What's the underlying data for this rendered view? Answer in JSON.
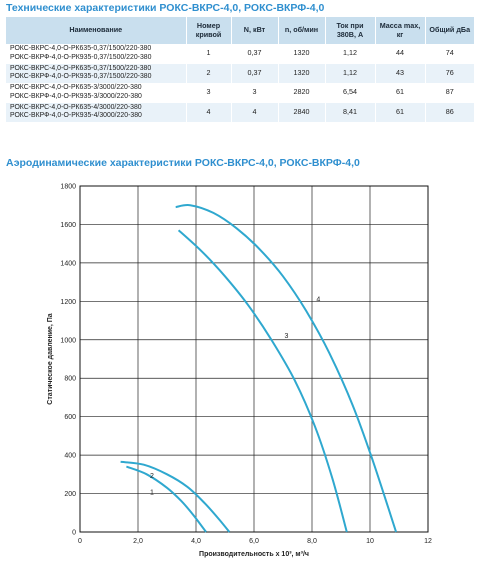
{
  "header": {
    "specs_title": "Технические характеристики РОКС-ВКРС-4,0, РОКС-ВКРФ-4,0",
    "aero_title": "Аэродинамические характеристики РОКС-ВКРС-4,0, РОКС-ВКРФ-4,0"
  },
  "table": {
    "columns": [
      "Наименование",
      "Номер кривой",
      "N, кВт",
      "n, об/мин",
      "Ток при 380В, А",
      "Масса max, кг",
      "Общий дБа"
    ],
    "rows": [
      {
        "names": [
          "РОКС-ВКРС-4,0-О-РК635-0,37/1500/220-380",
          "РОКС-ВКРФ-4,0-О-РК935-0,37/1500/220-380"
        ],
        "curve": "1",
        "power": "0,37",
        "rpm": "1320",
        "current": "1,12",
        "mass": "44",
        "noise": "74"
      },
      {
        "names": [
          "РОКС-ВКРС-4,0-О-РК635-0,37/1500/220-380",
          "РОКС-ВКРФ-4,0-О-РК935-0,37/1500/220-380"
        ],
        "curve": "2",
        "power": "0,37",
        "rpm": "1320",
        "current": "1,12",
        "mass": "43",
        "noise": "76"
      },
      {
        "names": [
          "РОКС-ВКРС-4,0-О-РК635-3/3000/220-380",
          "РОКС-ВКРФ-4,0-О-РК935-3/3000/220-380"
        ],
        "curve": "3",
        "power": "3",
        "rpm": "2820",
        "current": "6,54",
        "mass": "61",
        "noise": "87"
      },
      {
        "names": [
          "РОКС-ВКРС-4,0-О-РК635-4/3000/220-380",
          "РОКС-ВКРФ-4,0-О-РК935-4/3000/220-380"
        ],
        "curve": "4",
        "power": "4",
        "rpm": "2840",
        "current": "8,41",
        "mass": "61",
        "noise": "86"
      }
    ]
  },
  "chart_data": {
    "type": "line",
    "title": "",
    "xlabel": "Производительность х 10³, м³/ч",
    "ylabel": "Статическое давление, Па",
    "xlim": [
      0,
      12
    ],
    "ylim": [
      0,
      1800
    ],
    "xticks": [
      "0",
      "2,0",
      "4,0",
      "6,0",
      "8,0",
      "10",
      "12"
    ],
    "yticks": [
      "0",
      "200",
      "400",
      "600",
      "800",
      "1000",
      "1200",
      "1400",
      "1600",
      "1800"
    ],
    "grid": true,
    "line_color": "#2fa8cf",
    "series": [
      {
        "name": "1",
        "x": [
          1.6,
          2.3,
          3.0,
          3.5,
          3.9,
          4.2,
          4.35
        ],
        "y": [
          340,
          300,
          230,
          160,
          90,
          30,
          0
        ]
      },
      {
        "name": "2",
        "x": [
          1.4,
          2.2,
          3.0,
          3.7,
          4.3,
          4.8,
          5.15
        ],
        "y": [
          365,
          350,
          300,
          235,
          150,
          65,
          0
        ]
      },
      {
        "name": "3",
        "x": [
          3.4,
          4.2,
          5.0,
          5.8,
          6.6,
          7.4,
          8.1,
          8.7,
          9.2
        ],
        "y": [
          1570,
          1460,
          1330,
          1180,
          1000,
          790,
          550,
          280,
          0
        ]
      },
      {
        "name": "4",
        "x": [
          3.3,
          3.8,
          4.6,
          5.4,
          6.2,
          7.0,
          7.8,
          8.6,
          9.4,
          10.1,
          10.9
        ],
        "y": [
          1690,
          1700,
          1660,
          1580,
          1470,
          1330,
          1150,
          930,
          660,
          370,
          0
        ]
      }
    ]
  }
}
